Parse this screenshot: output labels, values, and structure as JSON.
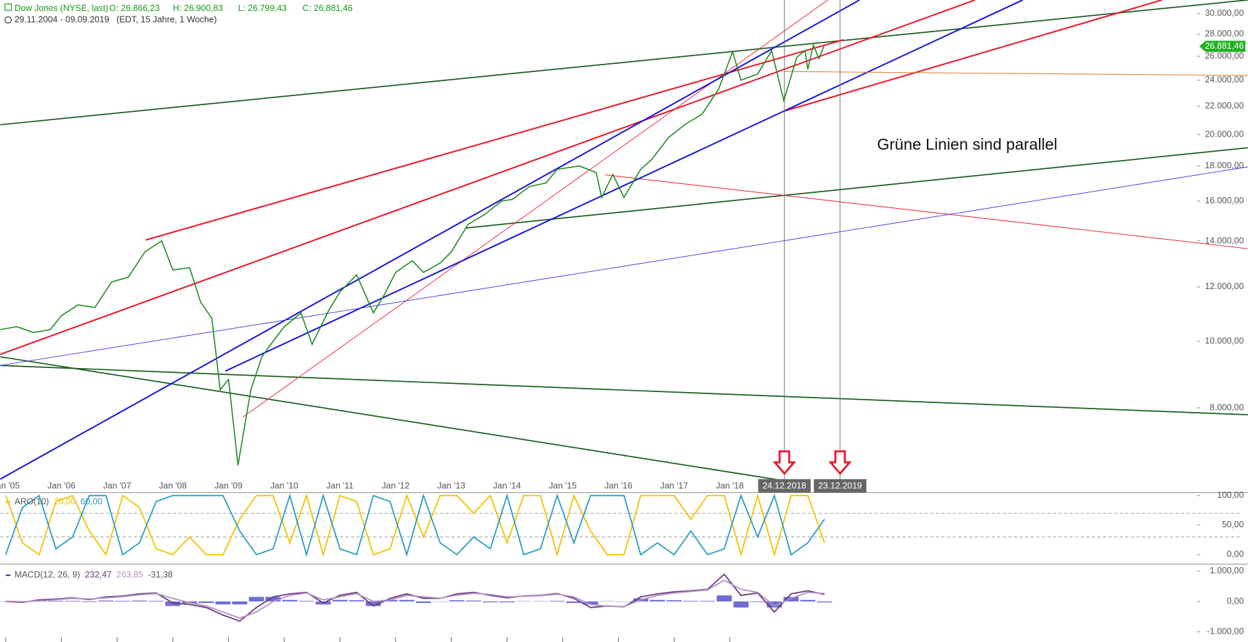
{
  "chart_data": [
    {
      "type": "line",
      "title": "Dow Jones (NYSE, last)",
      "ohlc": [
        "O: 26.866,23",
        "H: 26.900,83",
        "L: 26.799,43",
        "C: 26.881,46"
      ],
      "subtitle": "29.11.2004 - 09.09.2019",
      "subtitle_note": "(EDT, 15 Jahre, 1 Woche)",
      "annotation": "Grüne Linien sind parallel",
      "x": [
        2004.9,
        2005.2,
        2005.5,
        2005.8,
        2006.0,
        2006.3,
        2006.6,
        2006.9,
        2007.2,
        2007.5,
        2007.8,
        2008.0,
        2008.3,
        2008.5,
        2008.7,
        2008.85,
        2009.0,
        2009.17,
        2009.4,
        2009.6,
        2009.8,
        2010.0,
        2010.3,
        2010.5,
        2010.8,
        2011.0,
        2011.3,
        2011.6,
        2011.8,
        2012.0,
        2012.3,
        2012.5,
        2012.8,
        2013.0,
        2013.3,
        2013.6,
        2013.9,
        2014.1,
        2014.4,
        2014.7,
        2014.9,
        2015.3,
        2015.6,
        2015.7,
        2015.9,
        2016.1,
        2016.4,
        2016.6,
        2016.9,
        2017.2,
        2017.5,
        2017.8,
        2018.05,
        2018.2,
        2018.5,
        2018.75,
        2018.97,
        2019.2,
        2019.35,
        2019.4,
        2019.5,
        2019.6,
        2019.69
      ],
      "series": [
        {
          "color": "#1f8a1f",
          "values": [
            10400,
            10500,
            10300,
            10400,
            10900,
            11300,
            11200,
            12200,
            12400,
            13500,
            14000,
            12700,
            12800,
            11400,
            10800,
            8500,
            8800,
            6600,
            8500,
            9500,
            10000,
            10500,
            11000,
            9900,
            11100,
            11800,
            12500,
            11000,
            11700,
            12600,
            13100,
            12600,
            13000,
            13500,
            14800,
            15300,
            16000,
            16100,
            16800,
            17000,
            17800,
            18000,
            17600,
            16200,
            17500,
            16200,
            17800,
            18400,
            19800,
            20700,
            21400,
            23300,
            26400,
            24000,
            24500,
            26500,
            22400,
            25900,
            26500,
            24900,
            27000,
            25800,
            26881.46
          ]
        }
      ],
      "xlim": [
        2004.9,
        2027.3
      ],
      "xticks": [
        {
          "value": 2005,
          "label": "Jan '05"
        },
        {
          "value": 2006,
          "label": "Jan '06"
        },
        {
          "value": 2007,
          "label": "Jan '07"
        },
        {
          "value": 2008,
          "label": "Jan '08"
        },
        {
          "value": 2009,
          "label": "Jan '09"
        },
        {
          "value": 2010,
          "label": "Jan '10"
        },
        {
          "value": 2011,
          "label": "Jan '11"
        },
        {
          "value": 2012,
          "label": "Jan '12"
        },
        {
          "value": 2013,
          "label": "Jan '13"
        },
        {
          "value": 2014,
          "label": "Jan '14"
        },
        {
          "value": 2015,
          "label": "Jan '15"
        },
        {
          "value": 2016,
          "label": "Jan '16"
        },
        {
          "value": 2017,
          "label": "Jan '17"
        },
        {
          "value": 2018,
          "label": "Jan '18"
        }
      ],
      "ylim": [
        6300,
        31400
      ],
      "log_scale": true,
      "yticks": [
        {
          "value": 8000,
          "label": "8.000,00"
        },
        {
          "value": 10000,
          "label": "10.000,00"
        },
        {
          "value": 12000,
          "label": "12.000,00"
        },
        {
          "value": 14000,
          "label": "14.000,00"
        },
        {
          "value": 16000,
          "label": "16.000,00"
        },
        {
          "value": 18000,
          "label": "18.000,00"
        },
        {
          "value": 20000,
          "label": "20.000,00"
        },
        {
          "value": 22000,
          "label": "22.000,00"
        },
        {
          "value": 24000,
          "label": "24.000,00"
        },
        {
          "value": 26000,
          "label": "26.000,00"
        },
        {
          "value": 28000,
          "label": "28.000,00"
        },
        {
          "value": 30000,
          "label": "30.000,00"
        }
      ],
      "markers": [
        {
          "x": 2018.98,
          "label": "24.12.2018"
        },
        {
          "x": 2019.98,
          "label": "23.12.2019"
        }
      ],
      "last_price": 26881.46,
      "last_price_label": "26.881,46"
    },
    {
      "type": "line",
      "title": "ARO(10)",
      "x": [
        2005.0,
        2005.3,
        2005.6,
        2005.9,
        2006.2,
        2006.5,
        2006.8,
        2007.1,
        2007.4,
        2007.7,
        2008.0,
        2008.3,
        2008.6,
        2008.9,
        2009.2,
        2009.5,
        2009.8,
        2010.1,
        2010.4,
        2010.7,
        2011.0,
        2011.3,
        2011.6,
        2011.9,
        2012.2,
        2012.5,
        2012.8,
        2013.1,
        2013.4,
        2013.7,
        2014.0,
        2014.3,
        2014.6,
        2014.9,
        2015.2,
        2015.5,
        2015.8,
        2016.1,
        2016.4,
        2016.7,
        2017.0,
        2017.3,
        2017.6,
        2017.9,
        2018.2,
        2018.5,
        2018.8,
        2019.1,
        2019.4,
        2019.7
      ],
      "series": [
        {
          "color": "#f2c200",
          "value_label": "20,00",
          "values": [
            100,
            20,
            0,
            90,
            100,
            40,
            0,
            100,
            80,
            10,
            0,
            30,
            0,
            0,
            60,
            100,
            100,
            20,
            100,
            0,
            100,
            90,
            0,
            10,
            100,
            30,
            100,
            100,
            70,
            100,
            20,
            100,
            100,
            0,
            100,
            40,
            0,
            0,
            100,
            100,
            100,
            60,
            100,
            100,
            0,
            100,
            0,
            100,
            100,
            20
          ]
        },
        {
          "color": "#2b9ec2",
          "value_label": "60,00",
          "values": [
            0,
            80,
            100,
            10,
            30,
            100,
            100,
            0,
            20,
            90,
            100,
            100,
            100,
            100,
            40,
            0,
            10,
            100,
            0,
            100,
            10,
            0,
            100,
            90,
            0,
            100,
            20,
            0,
            30,
            10,
            100,
            0,
            10,
            100,
            20,
            100,
            100,
            100,
            0,
            20,
            0,
            40,
            0,
            10,
            100,
            30,
            100,
            0,
            20,
            60
          ]
        }
      ],
      "ylim": [
        -16,
        105
      ],
      "yticks": [
        {
          "value": 0,
          "label": "0,00"
        },
        {
          "value": 50,
          "label": "50,00"
        },
        {
          "value": 100,
          "label": "100,00"
        }
      ],
      "levels": [
        30,
        70
      ]
    },
    {
      "type": "macd",
      "title": "MACD(12, 26, 9)",
      "x": [
        2005.0,
        2005.3,
        2005.6,
        2005.9,
        2006.2,
        2006.5,
        2006.8,
        2007.1,
        2007.4,
        2007.7,
        2008.0,
        2008.3,
        2008.6,
        2008.9,
        2009.2,
        2009.5,
        2009.8,
        2010.1,
        2010.4,
        2010.7,
        2011.0,
        2011.3,
        2011.6,
        2011.9,
        2012.2,
        2012.5,
        2012.8,
        2013.1,
        2013.4,
        2013.7,
        2014.0,
        2014.3,
        2014.6,
        2014.9,
        2015.2,
        2015.5,
        2015.8,
        2016.1,
        2016.4,
        2016.7,
        2017.0,
        2017.3,
        2017.6,
        2017.9,
        2018.2,
        2018.5,
        2018.8,
        2019.1,
        2019.4,
        2019.7
      ],
      "series": [
        {
          "color": "#6a3d7c",
          "value_label": "232,47",
          "values": [
            0,
            -30,
            50,
            80,
            120,
            60,
            150,
            180,
            250,
            280,
            -50,
            -100,
            -200,
            -450,
            -650,
            -200,
            150,
            250,
            300,
            -50,
            200,
            300,
            -150,
            100,
            250,
            100,
            100,
            250,
            300,
            200,
            120,
            180,
            200,
            260,
            100,
            -200,
            -150,
            -180,
            150,
            250,
            320,
            350,
            400,
            900,
            200,
            280,
            -350,
            250,
            350,
            232.47
          ]
        },
        {
          "color": "#b58fc6",
          "value_label": "263,85",
          "values": [
            10,
            -10,
            20,
            60,
            100,
            80,
            120,
            160,
            220,
            260,
            100,
            -40,
            -150,
            -350,
            -550,
            -350,
            0,
            200,
            280,
            50,
            150,
            260,
            0,
            50,
            200,
            150,
            110,
            210,
            270,
            230,
            150,
            170,
            190,
            240,
            150,
            -100,
            -160,
            -170,
            50,
            200,
            280,
            330,
            380,
            700,
            400,
            300,
            -150,
            100,
            300,
            263.85
          ]
        }
      ],
      "histogram": {
        "color": "#5555cc",
        "value_label": "-31,38",
        "values": [
          -10,
          -20,
          30,
          20,
          20,
          -20,
          30,
          20,
          30,
          20,
          -150,
          -60,
          -50,
          -100,
          -100,
          150,
          150,
          50,
          20,
          -100,
          50,
          40,
          -150,
          50,
          50,
          -50,
          -10,
          40,
          30,
          -30,
          -30,
          10,
          10,
          20,
          -50,
          -100,
          10,
          -10,
          100,
          50,
          40,
          20,
          20,
          200,
          -200,
          -20,
          -200,
          150,
          50,
          -31.38
        ]
      },
      "ylim": [
        -1340,
        1180
      ],
      "yticks": [
        {
          "value": -1000,
          "label": "-1.000,00"
        },
        {
          "value": 0,
          "label": "0,00"
        },
        {
          "value": 1000,
          "label": "1.000,00"
        }
      ]
    }
  ]
}
